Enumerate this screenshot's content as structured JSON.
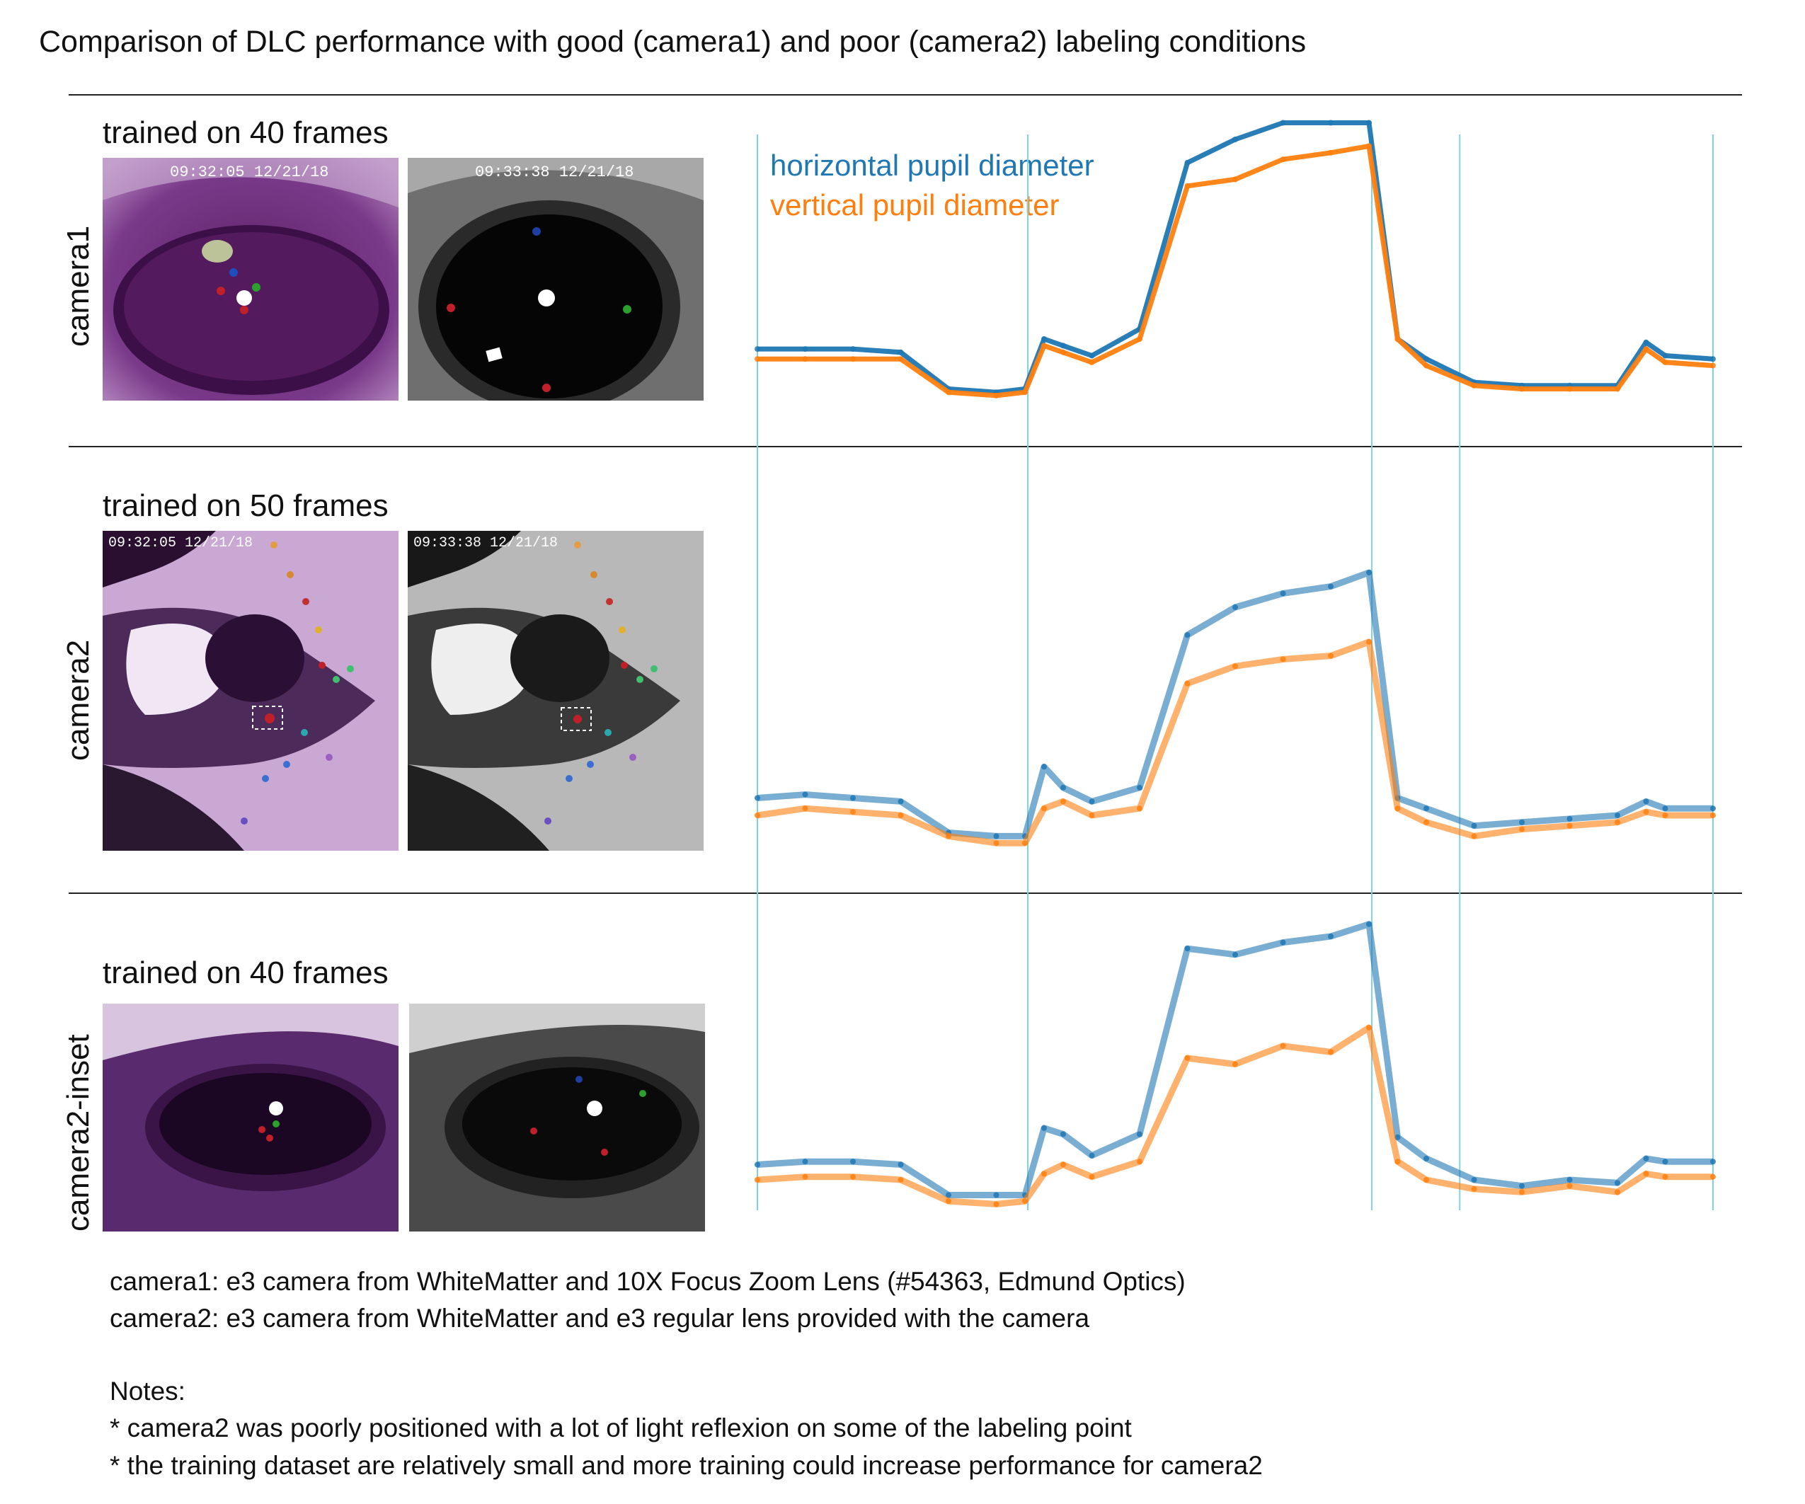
{
  "title": "Comparison of DLC performance with good (camera1) and poor (camera2) labeling conditions",
  "panels": [
    {
      "camera_label": "camera1",
      "training_label": "trained on 40 frames",
      "left_frame": {
        "timestamp": "09:32:05  12/21/18"
      },
      "right_frame": {
        "timestamp": "09:33:38  12/21/18"
      }
    },
    {
      "camera_label": "camera2",
      "training_label": "trained on 50 frames",
      "left_frame": {
        "timestamp": "09:32:05  12/21/18"
      },
      "right_frame": {
        "timestamp": "09:33:38  12/21/18"
      }
    },
    {
      "camera_label": "camera2-inset",
      "training_label": "trained on 40 frames",
      "left_frame": {
        "timestamp": ""
      },
      "right_frame": {
        "timestamp": ""
      }
    }
  ],
  "colors": {
    "horizontal": "#1f77b4",
    "vertical": "#ff7f0e",
    "marker_lines": "#7fd3dd",
    "frame1_tint": "#6b2d7a",
    "frame2_gray": "#4a4a4a"
  },
  "chart_data": {
    "type": "scatter",
    "xlabel": "",
    "ylabel": "",
    "x": [
      0,
      5,
      10,
      15,
      20,
      25,
      28,
      30,
      32,
      35,
      40,
      45,
      50,
      55,
      60,
      64,
      67,
      70,
      75,
      80,
      85,
      90,
      93,
      95,
      100
    ],
    "event_markers_x": [
      0,
      28.3,
      64.3,
      73.5,
      100
    ],
    "series_names": [
      "horizontal pupil diameter",
      "vertical pupil diameter"
    ],
    "panels": [
      {
        "name": "camera1",
        "y_range": [
          0,
          1
        ],
        "series": [
          {
            "name": "horizontal pupil diameter",
            "values": [
              0.27,
              0.27,
              0.27,
              0.26,
              0.15,
              0.14,
              0.15,
              0.3,
              0.28,
              0.25,
              0.33,
              0.83,
              0.9,
              0.95,
              0.95,
              0.95,
              0.3,
              0.24,
              0.17,
              0.16,
              0.16,
              0.16,
              0.29,
              0.25,
              0.24
            ]
          },
          {
            "name": "vertical pupil diameter",
            "values": [
              0.24,
              0.24,
              0.24,
              0.24,
              0.14,
              0.13,
              0.14,
              0.28,
              0.26,
              0.23,
              0.3,
              0.76,
              0.78,
              0.84,
              0.86,
              0.88,
              0.3,
              0.22,
              0.16,
              0.15,
              0.15,
              0.15,
              0.27,
              0.23,
              0.22
            ]
          }
        ]
      },
      {
        "name": "camera2",
        "y_range": [
          0,
          1
        ],
        "series": [
          {
            "name": "horizontal pupil diameter",
            "values": [
              0.25,
              0.26,
              0.25,
              0.24,
              0.15,
              0.14,
              0.14,
              0.34,
              0.28,
              0.24,
              0.28,
              0.72,
              0.8,
              0.84,
              0.86,
              0.9,
              0.25,
              0.22,
              0.17,
              0.18,
              0.19,
              0.2,
              0.24,
              0.22,
              0.22
            ]
          },
          {
            "name": "vertical pupil diameter",
            "values": [
              0.2,
              0.22,
              0.21,
              0.2,
              0.14,
              0.12,
              0.12,
              0.22,
              0.24,
              0.2,
              0.22,
              0.58,
              0.63,
              0.65,
              0.66,
              0.7,
              0.22,
              0.18,
              0.14,
              0.16,
              0.17,
              0.18,
              0.21,
              0.2,
              0.2
            ]
          }
        ]
      },
      {
        "name": "camera2-inset",
        "y_range": [
          0,
          1
        ],
        "series": [
          {
            "name": "horizontal pupil diameter",
            "values": [
              0.15,
              0.16,
              0.16,
              0.15,
              0.05,
              0.05,
              0.05,
              0.27,
              0.25,
              0.18,
              0.25,
              0.86,
              0.84,
              0.88,
              0.9,
              0.94,
              0.24,
              0.17,
              0.1,
              0.08,
              0.1,
              0.09,
              0.17,
              0.16,
              0.16
            ]
          },
          {
            "name": "vertical pupil diameter",
            "values": [
              0.1,
              0.11,
              0.11,
              0.1,
              0.03,
              0.02,
              0.03,
              0.12,
              0.15,
              0.11,
              0.16,
              0.5,
              0.48,
              0.54,
              0.52,
              0.6,
              0.16,
              0.1,
              0.07,
              0.06,
              0.08,
              0.06,
              0.12,
              0.11,
              0.11
            ]
          }
        ]
      }
    ]
  },
  "footnotes": {
    "camera1_desc": "camera1: e3 camera from WhiteMatter and 10X Focus Zoom Lens (#54363, Edmund Optics)",
    "camera2_desc": "camera2: e3 camera from WhiteMatter and e3 regular lens provided with the camera",
    "notes_heading": "Notes:",
    "note1": "* camera2 was poorly positioned with a lot of light reflexion on some of the labeling point",
    "note2": "* the training dataset are relatively small and more training could increase performance for camera2"
  }
}
